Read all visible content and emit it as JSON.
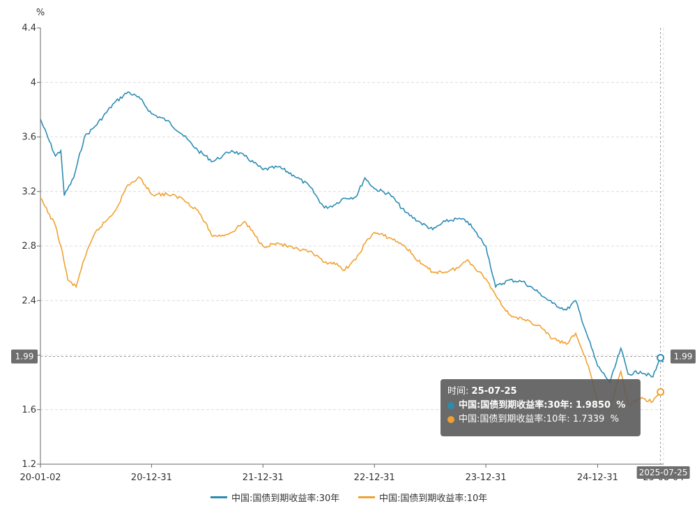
{
  "chart_data": {
    "type": "line",
    "ylabel": "%",
    "ylim": [
      1.2,
      4.4
    ],
    "yticks": [
      "4.4",
      "4",
      "3.6",
      "3.2",
      "2.8",
      "2.4",
      "2.0",
      "1.6",
      "1.2"
    ],
    "ytick_labels": [
      "4.4",
      "4",
      "3.6",
      "3.2",
      "2.8",
      "2.4",
      "",
      "1.6",
      "1.2"
    ],
    "xticks": [
      "20-01-02",
      "20-12-31",
      "21-12-31",
      "22-12-31",
      "23-12-31",
      "24-12-31"
    ],
    "x_range": [
      "2020-01-02",
      "2025-08-04"
    ],
    "x_end_label": "25-08-04",
    "crosshair": {
      "x_label": "2025-07-25",
      "y_label": "1.99",
      "y_value": 1.99
    },
    "grid": true,
    "legend_position": "bottom",
    "series": [
      {
        "name": "中国:国债到期收益率:30年",
        "color": "#2b8cb3",
        "x": [
          "2020-01-02",
          "2020-02-20",
          "2020-03-09",
          "2020-03-20",
          "2020-04-20",
          "2020-05-25",
          "2020-06-30",
          "2020-08-31",
          "2020-10-15",
          "2020-11-24",
          "2020-12-31",
          "2021-02-20",
          "2021-04-10",
          "2021-06-01",
          "2021-07-20",
          "2021-08-20",
          "2021-09-20",
          "2021-11-01",
          "2021-12-31",
          "2022-02-20",
          "2022-04-10",
          "2022-06-01",
          "2022-07-20",
          "2022-08-20",
          "2022-09-20",
          "2022-10-31",
          "2022-11-30",
          "2022-12-31",
          "2023-02-20",
          "2023-04-10",
          "2023-06-01",
          "2023-07-10",
          "2023-08-20",
          "2023-10-01",
          "2023-11-01",
          "2023-12-31",
          "2024-02-01",
          "2024-03-15",
          "2024-04-30",
          "2024-06-20",
          "2024-08-05",
          "2024-09-20",
          "2024-10-20",
          "2024-12-01",
          "2024-12-31",
          "2025-02-10",
          "2025-03-17",
          "2025-04-10",
          "2025-05-20",
          "2025-06-30",
          "2025-07-25",
          "2025-08-04"
        ],
        "values": [
          3.73,
          3.46,
          3.5,
          3.17,
          3.3,
          3.6,
          3.68,
          3.85,
          3.93,
          3.88,
          3.77,
          3.72,
          3.62,
          3.5,
          3.42,
          3.46,
          3.5,
          3.46,
          3.36,
          3.38,
          3.32,
          3.24,
          3.08,
          3.1,
          3.15,
          3.16,
          3.3,
          3.22,
          3.18,
          3.05,
          2.97,
          2.92,
          2.98,
          3.0,
          2.98,
          2.8,
          2.5,
          2.55,
          2.54,
          2.46,
          2.38,
          2.33,
          2.4,
          2.12,
          1.92,
          1.8,
          2.05,
          1.86,
          1.88,
          1.84,
          1.98,
          1.95
        ]
      },
      {
        "name": "中国:国债到期收益率:10年",
        "color": "#f0a130",
        "x": [
          "2020-01-02",
          "2020-02-20",
          "2020-03-09",
          "2020-04-01",
          "2020-04-28",
          "2020-05-20",
          "2020-06-30",
          "2020-08-31",
          "2020-10-15",
          "2020-11-24",
          "2020-12-31",
          "2021-02-20",
          "2021-04-10",
          "2021-06-01",
          "2021-07-20",
          "2021-08-20",
          "2021-09-20",
          "2021-11-01",
          "2021-12-31",
          "2022-02-20",
          "2022-04-10",
          "2022-06-01",
          "2022-07-20",
          "2022-08-20",
          "2022-09-20",
          "2022-10-31",
          "2022-11-30",
          "2022-12-31",
          "2023-02-20",
          "2023-04-10",
          "2023-06-01",
          "2023-07-10",
          "2023-08-20",
          "2023-10-01",
          "2023-11-01",
          "2023-12-31",
          "2024-02-01",
          "2024-03-15",
          "2024-04-30",
          "2024-06-20",
          "2024-08-05",
          "2024-09-20",
          "2024-10-20",
          "2024-12-01",
          "2024-12-31",
          "2025-02-10",
          "2025-03-17",
          "2025-04-10",
          "2025-05-20",
          "2025-06-30",
          "2025-07-25",
          "2025-08-04"
        ],
        "values": [
          3.15,
          2.95,
          2.8,
          2.55,
          2.5,
          2.68,
          2.9,
          3.05,
          3.25,
          3.3,
          3.18,
          3.18,
          3.15,
          3.06,
          2.87,
          2.88,
          2.9,
          2.98,
          2.8,
          2.82,
          2.78,
          2.76,
          2.68,
          2.68,
          2.62,
          2.7,
          2.82,
          2.9,
          2.86,
          2.8,
          2.67,
          2.61,
          2.61,
          2.64,
          2.7,
          2.56,
          2.44,
          2.3,
          2.26,
          2.22,
          2.12,
          2.08,
          2.16,
          1.92,
          1.66,
          1.62,
          1.88,
          1.64,
          1.68,
          1.66,
          1.73,
          1.71
        ]
      }
    ]
  },
  "tooltip": {
    "time_label": "时间:",
    "time_value": "25-07-25",
    "rows": [
      {
        "text": "中国:国债到期收益率:30年:",
        "value": "1.9850",
        "unit": "%"
      },
      {
        "text": "中国:国债到期收益率:10年:",
        "value": "1.7339",
        "unit": "%"
      }
    ]
  },
  "legend": {
    "items": [
      "中国:国债到期收益率:30年",
      "中国:国债到期收益率:10年"
    ]
  }
}
